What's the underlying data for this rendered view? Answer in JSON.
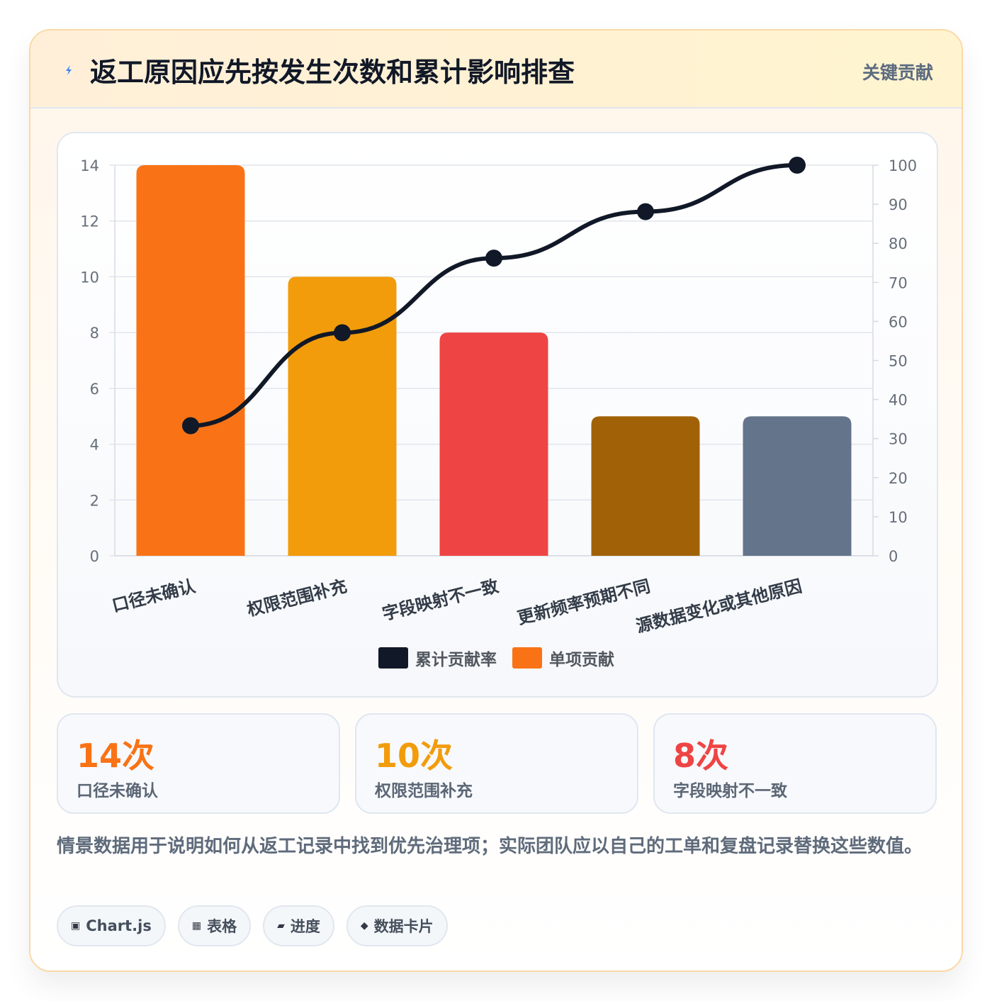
{
  "header": {
    "title": "返工原因应先按发生次数和累计影响排查",
    "badge": "关键贡献"
  },
  "chart_data": {
    "type": "bar",
    "categories": [
      "口径未确认",
      "权限范围补充",
      "字段映射不一致",
      "更新频率预期不同",
      "源数据变化或其他原因"
    ],
    "series": [
      {
        "name": "单项贡献",
        "type": "bar",
        "axis": "left",
        "values": [
          14,
          10,
          8,
          5,
          5
        ]
      },
      {
        "name": "累计贡献率",
        "type": "line",
        "axis": "right",
        "values": [
          33.3,
          57.1,
          76.2,
          88.1,
          100
        ]
      }
    ],
    "bar_colors": [
      "#f97316",
      "#f29c0b",
      "#ef4444",
      "#a16207",
      "#64748b"
    ],
    "line_color": "#111827",
    "ylim": [
      0,
      14
    ],
    "y_ticks": [
      0,
      2,
      4,
      6,
      8,
      10,
      12,
      14
    ],
    "y2lim": [
      0,
      100
    ],
    "y2_ticks": [
      0,
      10,
      20,
      30,
      40,
      50,
      60,
      70,
      80,
      90,
      100
    ],
    "grid": true,
    "legend_position": "bottom",
    "legend": [
      {
        "label": "累计贡献率",
        "color": "#111827"
      },
      {
        "label": "单项贡献",
        "color": "#f97316"
      }
    ]
  },
  "stats": [
    {
      "value": "14次",
      "label": "口径未确认",
      "color": "#f97316"
    },
    {
      "value": "10次",
      "label": "权限范围补充",
      "color": "#f29c0b"
    },
    {
      "value": "8次",
      "label": "字段映射不一致",
      "color": "#ef4444"
    }
  ],
  "note": "情景数据用于说明如何从返工记录中找到优先治理项；实际团队应以自己的工单和复盘记录替换这些数值。",
  "tags": [
    {
      "icon": "▣",
      "label": "Chart.js"
    },
    {
      "icon": "▦",
      "label": "表格"
    },
    {
      "icon": "▰",
      "label": "进度"
    },
    {
      "icon": "◆",
      "label": "数据卡片"
    }
  ]
}
